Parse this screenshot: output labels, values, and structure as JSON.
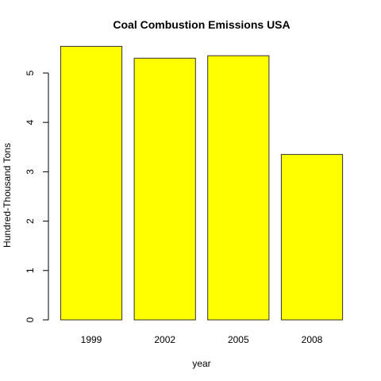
{
  "chart_data": {
    "type": "bar",
    "title": "Coal Combustion Emissions USA",
    "xlabel": "year",
    "ylabel": "Hundred-Thousand Tons",
    "categories": [
      "1999",
      "2002",
      "2005",
      "2008"
    ],
    "values": [
      5.54,
      5.3,
      5.35,
      3.35
    ],
    "ylim": [
      0,
      5.7
    ],
    "yticks": [
      0,
      1,
      2,
      3,
      4,
      5
    ],
    "bar_color": "#FFFF00",
    "bar_border_color": "#333333",
    "grid": false,
    "legend": "none"
  }
}
